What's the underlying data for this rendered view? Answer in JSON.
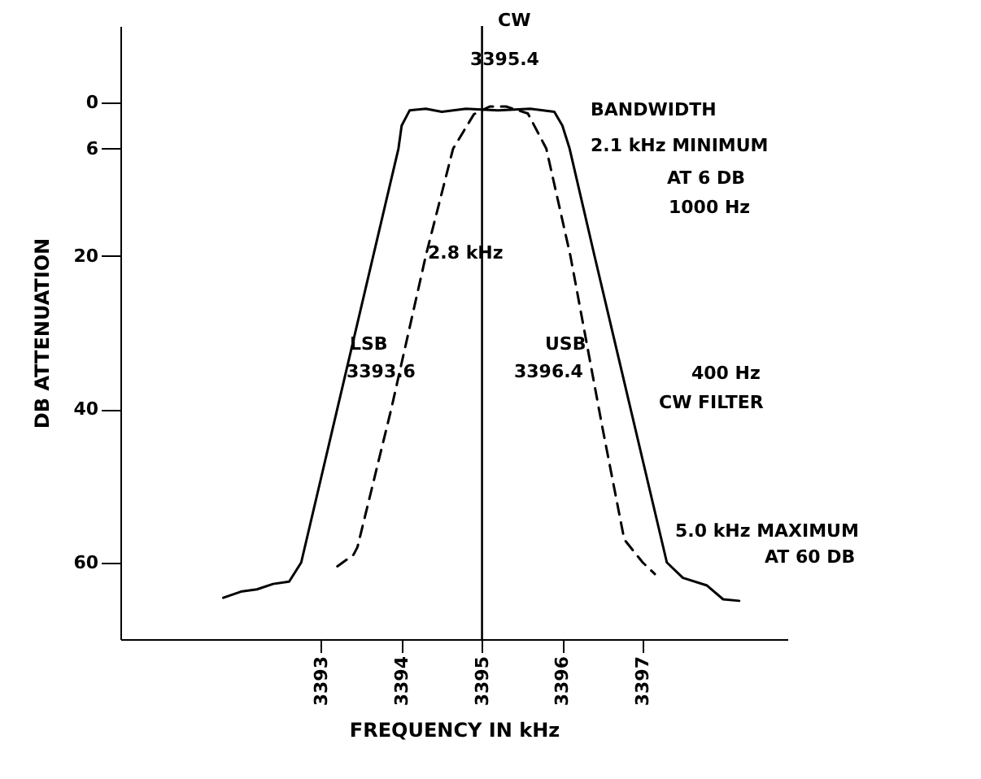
{
  "chart_data": {
    "type": "line",
    "xlabel": "FREQUENCY IN kHz",
    "ylabel": "DB ATTENUATION",
    "xlim": [
      3390.5,
      3398.8
    ],
    "xticks": [
      3393,
      3394,
      3395,
      3396,
      3397
    ],
    "ylim": [
      70,
      -10
    ],
    "yticks": [
      0,
      6,
      20,
      40,
      60
    ],
    "grid": false,
    "marker": "none",
    "series": [
      {
        "color": "#000000",
        "line_style": "solid",
        "x": [
          3391.78,
          3392.0,
          3392.2,
          3392.4,
          3392.6,
          3392.75,
          3393.96,
          3394.0,
          3394.1,
          3394.3,
          3394.5,
          3394.8,
          3395.2,
          3395.6,
          3395.9,
          3396.0,
          3396.09,
          3396.4,
          3397.3,
          3397.5,
          3397.8,
          3398.0,
          3398.2
        ],
        "values": [
          64.6,
          63.8,
          63.5,
          62.8,
          62.5,
          60,
          6,
          3,
          1,
          0.8,
          1.2,
          0.8,
          1,
          0.8,
          1.2,
          3,
          6,
          20,
          60,
          62,
          63,
          64.8,
          65
        ]
      },
      {
        "color": "#000000",
        "line_style": "dashed",
        "x": [
          3393.2,
          3393.4,
          3393.45,
          3393.87,
          3394.3,
          3394.64,
          3394.9,
          3395.1,
          3395.3,
          3395.57,
          3395.8,
          3396.1,
          3396.5,
          3396.77,
          3397.0,
          3397.15
        ],
        "values": [
          60.5,
          59,
          58,
          40,
          20,
          6,
          1.5,
          0.5,
          0.5,
          1.4,
          6,
          20,
          42.5,
          57,
          60,
          61.5
        ]
      }
    ],
    "ref_lines": [
      {
        "axis": "x",
        "value": 3395,
        "color": "#000000",
        "line_style": "solid"
      }
    ],
    "annotations": [
      "CW",
      "3395.4",
      "BANDWIDTH",
      "2.1 kHz MINIMUM",
      "AT 6 DB",
      "1000 Hz",
      "2.8 kHz",
      "LSB",
      "3393.6",
      "USB",
      "3396.4",
      "400 Hz",
      "CW FILTER",
      "5.0 kHz MAXIMUM",
      "AT 60 DB"
    ]
  }
}
